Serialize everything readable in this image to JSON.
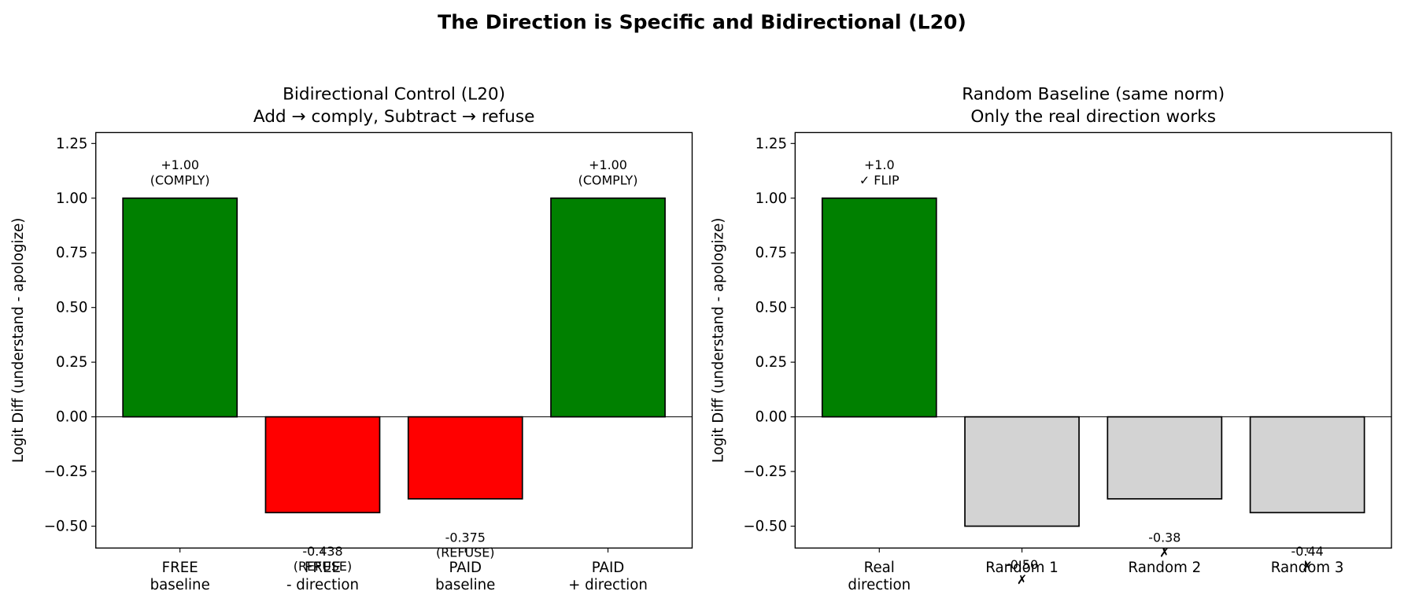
{
  "title": "The Direction is Specific and Bidirectional (L20)",
  "chart_data": [
    {
      "type": "bar",
      "title": "Bidirectional Control (L20)",
      "subtitle": "Add → comply, Subtract → refuse",
      "y_label": "Logit Diff (understand - apologize)",
      "categories": [
        "FREE\nbaseline",
        "FREE\n- direction",
        "PAID\nbaseline",
        "PAID\n+ direction"
      ],
      "values": [
        1.0,
        -0.438,
        -0.375,
        1.0
      ],
      "value_labels": [
        "+1.00\n(COMPLY)",
        "-0.438\n(REFUSE)",
        "-0.375\n(REFUSE)",
        "+1.00\n(COMPLY)"
      ],
      "colors": [
        "#008000",
        "#ff0000",
        "#ff0000",
        "#008000"
      ],
      "ylim": [
        -0.6,
        1.3
      ],
      "yticks": [
        {
          "value": -0.5,
          "label": "−0.50"
        },
        {
          "value": -0.25,
          "label": "−0.25"
        },
        {
          "value": 0,
          "label": "0.00"
        },
        0.25,
        {
          "value": 0.5,
          "label": "0.50"
        },
        0.75,
        {
          "value": 1,
          "label": "1.00"
        },
        1.25
      ]
    },
    {
      "type": "bar",
      "title": "Random Baseline (same norm)",
      "subtitle": "Only the real direction works",
      "y_label": "Logit Diff (understand - apologize)",
      "categories": [
        "Real\ndirection",
        "Random 1",
        "Random 2",
        "Random 3"
      ],
      "values": [
        1.0,
        -0.5,
        -0.375,
        -0.438
      ],
      "value_labels": [
        "+1.0\n✓ FLIP",
        "-0.50\n✗",
        "-0.38\n✗",
        "-0.44\n✗"
      ],
      "colors": [
        "#008000",
        "#d3d3d3",
        "#d3d3d3",
        "#d3d3d3"
      ],
      "ylim": [
        -0.6,
        1.3
      ],
      "yticks": [
        {
          "value": -0.5,
          "label": "−0.50"
        },
        {
          "value": -0.25,
          "label": "−0.25"
        },
        {
          "value": 0,
          "label": "0.00"
        },
        0.25,
        {
          "value": 0.5,
          "label": "0.50"
        },
        0.75,
        {
          "value": 1,
          "label": "1.00"
        },
        1.25
      ]
    }
  ]
}
